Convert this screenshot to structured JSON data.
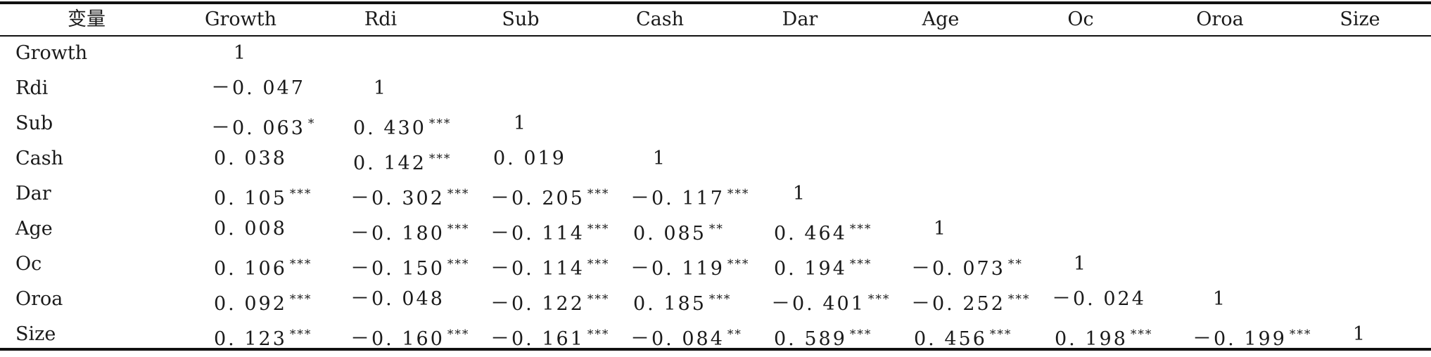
{
  "table": {
    "corner_header": "变量",
    "columns": [
      "Growth",
      "Rdi",
      "Sub",
      "Cash",
      "Dar",
      "Age",
      "Oc",
      "Oroa",
      "Size"
    ],
    "rows": [
      {
        "label": "Growth",
        "cells": [
          {
            "v": "1",
            "s": ""
          }
        ]
      },
      {
        "label": "Rdi",
        "cells": [
          {
            "v": "－0. 047",
            "s": ""
          },
          {
            "v": "1",
            "s": ""
          }
        ]
      },
      {
        "label": "Sub",
        "cells": [
          {
            "v": "－0. 063",
            "s": "*"
          },
          {
            "v": "0. 430",
            "s": "***"
          },
          {
            "v": "1",
            "s": ""
          }
        ]
      },
      {
        "label": "Cash",
        "cells": [
          {
            "v": "0. 038",
            "s": ""
          },
          {
            "v": "0. 142",
            "s": "***"
          },
          {
            "v": "0. 019",
            "s": ""
          },
          {
            "v": "1",
            "s": ""
          }
        ]
      },
      {
        "label": "Dar",
        "cells": [
          {
            "v": "0. 105",
            "s": "***"
          },
          {
            "v": "－0. 302",
            "s": "***"
          },
          {
            "v": "－0. 205",
            "s": "***"
          },
          {
            "v": "－0. 117",
            "s": "***"
          },
          {
            "v": "1",
            "s": ""
          }
        ]
      },
      {
        "label": "Age",
        "cells": [
          {
            "v": "0. 008",
            "s": ""
          },
          {
            "v": "－0. 180",
            "s": "***"
          },
          {
            "v": "－0. 114",
            "s": "***"
          },
          {
            "v": "0. 085",
            "s": "**"
          },
          {
            "v": "0. 464",
            "s": "***"
          },
          {
            "v": "1",
            "s": ""
          }
        ]
      },
      {
        "label": "Oc",
        "cells": [
          {
            "v": "0. 106",
            "s": "***"
          },
          {
            "v": "－0. 150",
            "s": "***"
          },
          {
            "v": "－0. 114",
            "s": "***"
          },
          {
            "v": "－0. 119",
            "s": "***"
          },
          {
            "v": "0. 194",
            "s": "***"
          },
          {
            "v": "－0. 073",
            "s": "**"
          },
          {
            "v": "1",
            "s": ""
          }
        ]
      },
      {
        "label": "Oroa",
        "cells": [
          {
            "v": "0. 092",
            "s": "***"
          },
          {
            "v": "－0. 048",
            "s": ""
          },
          {
            "v": "－0. 122",
            "s": "***"
          },
          {
            "v": "0. 185",
            "s": "***"
          },
          {
            "v": "－0. 401",
            "s": "***"
          },
          {
            "v": "－0. 252",
            "s": "***"
          },
          {
            "v": "－0. 024",
            "s": ""
          },
          {
            "v": "1",
            "s": ""
          }
        ]
      },
      {
        "label": "Size",
        "cells": [
          {
            "v": "0. 123",
            "s": "***"
          },
          {
            "v": "－0. 160",
            "s": "***"
          },
          {
            "v": "－0. 161",
            "s": "***"
          },
          {
            "v": "－0. 084",
            "s": "**"
          },
          {
            "v": "0. 589",
            "s": "***"
          },
          {
            "v": "0. 456",
            "s": "***"
          },
          {
            "v": "0. 198",
            "s": "***"
          },
          {
            "v": "－0. 199",
            "s": "***"
          },
          {
            "v": "1",
            "s": ""
          }
        ]
      }
    ]
  }
}
